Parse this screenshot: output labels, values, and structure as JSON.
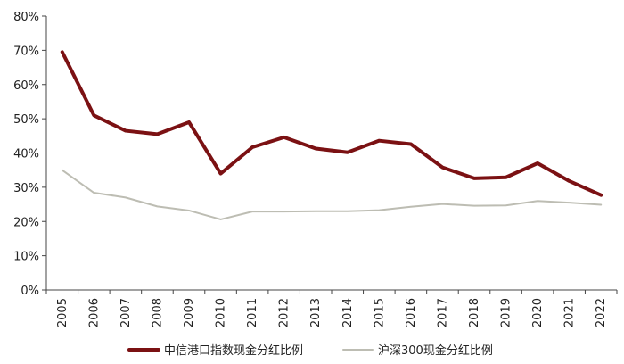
{
  "chart_data": {
    "type": "line",
    "title": "",
    "xlabel": "",
    "ylabel": "",
    "ylim": [
      0,
      80
    ],
    "yticks": [
      0,
      10,
      20,
      30,
      40,
      50,
      60,
      70,
      80
    ],
    "ytick_labels": [
      "0%",
      "10%",
      "20%",
      "30%",
      "40%",
      "50%",
      "60%",
      "70%",
      "80%"
    ],
    "categories": [
      "2005",
      "2006",
      "2007",
      "2008",
      "2009",
      "2010",
      "2011",
      "2012",
      "2013",
      "2014",
      "2015",
      "2016",
      "2017",
      "2018",
      "2019",
      "2020",
      "2021",
      "2022"
    ],
    "series": [
      {
        "name": "中信港口指数现金分红比例",
        "color": "#7B1113",
        "values": [
          69.5,
          51.0,
          46.5,
          45.5,
          49.0,
          34.0,
          41.7,
          44.6,
          41.3,
          40.2,
          43.6,
          42.6,
          35.8,
          32.6,
          32.9,
          37.0,
          31.8,
          27.7
        ]
      },
      {
        "name": "沪深300现金分红比例",
        "color": "#BDBDB3",
        "values": [
          35.0,
          28.4,
          27.0,
          24.4,
          23.2,
          20.6,
          22.9,
          22.9,
          23.0,
          23.0,
          23.3,
          24.3,
          25.1,
          24.6,
          24.7,
          26.0,
          25.5,
          24.9
        ]
      }
    ],
    "grid": false,
    "legend_position": "bottom"
  }
}
